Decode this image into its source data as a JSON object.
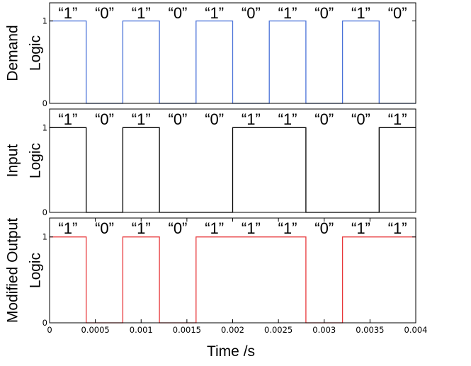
{
  "chart_data": [
    {
      "type": "line",
      "panel": "demand",
      "ylabel": [
        "Demand",
        "Logic"
      ],
      "color": "#4a72d8",
      "bit_labels": [
        "“1”",
        "“0”",
        "“1”",
        "“0”",
        "“1”",
        "“0”",
        "“1”",
        "“0”",
        "“1”",
        "“0”"
      ],
      "x": [
        0,
        0.0004,
        0.0004,
        0.0008,
        0.0008,
        0.0012,
        0.0012,
        0.0016,
        0.0016,
        0.002,
        0.002,
        0.0024,
        0.0024,
        0.0028,
        0.0028,
        0.0032,
        0.0032,
        0.0036,
        0.0036,
        0.004
      ],
      "y": [
        1,
        1,
        0,
        0,
        1,
        1,
        0,
        0,
        1,
        1,
        0,
        0,
        1,
        1,
        0,
        0,
        1,
        1,
        0,
        0
      ],
      "yticks": [
        "0",
        "1"
      ],
      "ylim": [
        0,
        1.22
      ],
      "xlim": [
        0,
        0.004
      ]
    },
    {
      "type": "line",
      "panel": "input",
      "ylabel": [
        "Input",
        "Logic"
      ],
      "color": "#000000",
      "bit_labels": [
        "“1”",
        "“0”",
        "“1”",
        "“0”",
        "“0”",
        "“1”",
        "“1”",
        "“0”",
        "“0”",
        "“1”"
      ],
      "x": [
        0,
        0.0004,
        0.0004,
        0.0008,
        0.0008,
        0.0012,
        0.0012,
        0.002,
        0.002,
        0.0028,
        0.0028,
        0.0036,
        0.0036,
        0.004
      ],
      "y": [
        1,
        1,
        0,
        0,
        1,
        1,
        0,
        0,
        1,
        1,
        0,
        0,
        1,
        1
      ],
      "yticks": [
        "0",
        "1"
      ],
      "ylim": [
        0,
        1.22
      ],
      "xlim": [
        0,
        0.004
      ]
    },
    {
      "type": "line",
      "panel": "modified-output",
      "ylabel": [
        "Modified Output",
        "Logic"
      ],
      "color": "#e8383b",
      "bit_labels": [
        "“1”",
        "“0”",
        "“1”",
        "“0”",
        "“1”",
        "“1”",
        "“1”",
        "“0”",
        "“1”",
        "“1”"
      ],
      "x": [
        0,
        0.0004,
        0.0004,
        0.0008,
        0.0008,
        0.0012,
        0.0012,
        0.0016,
        0.0016,
        0.0028,
        0.0028,
        0.0032,
        0.0032,
        0.004
      ],
      "y": [
        1,
        1,
        0,
        0,
        1,
        1,
        0,
        0,
        1,
        1,
        0,
        0,
        1,
        1
      ],
      "yticks": [
        "0",
        "1"
      ],
      "ylim": [
        0,
        1.22
      ],
      "xlim": [
        0,
        0.004
      ],
      "xticks": [
        "0",
        "0.0005",
        "0.001",
        "0.0015",
        "0.002",
        "0.0025",
        "0.003",
        "0.0035",
        "0.004"
      ],
      "xtick_values": [
        0,
        0.0005,
        0.001,
        0.0015,
        0.002,
        0.0025,
        0.003,
        0.0035,
        0.004
      ]
    }
  ],
  "xlabel": "Time /s"
}
